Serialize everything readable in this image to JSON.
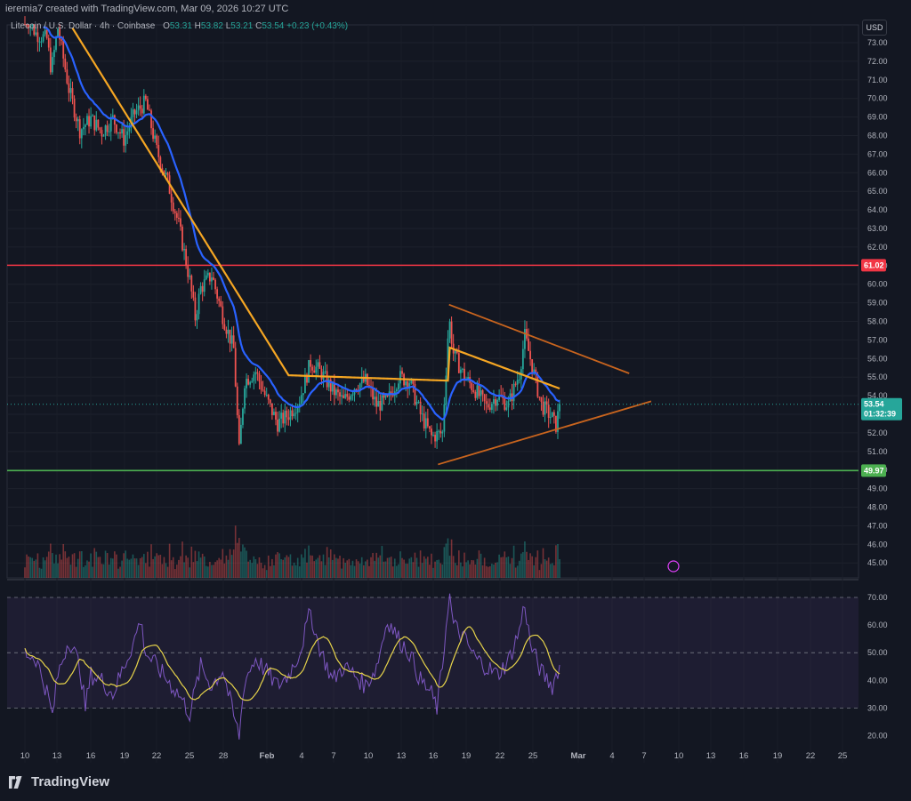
{
  "header": {
    "attribution": "ieremia7 created with TradingView.com, Mar 09, 2026 10:27 UTC"
  },
  "legend": {
    "symbol": "Litecoin / U.S. Dollar · 4h · Coinbase",
    "o_label": "O",
    "o": "53.31",
    "h_label": "H",
    "h": "53.82",
    "l_label": "L",
    "l": "53.21",
    "c_label": "C",
    "c": "53.54",
    "change": "+0.23 (+0.43%)"
  },
  "currency": "USD",
  "brand": "TradingView",
  "colors": {
    "background": "#131722",
    "up": "#26a69a",
    "down": "#ef5350",
    "ema_fast": "#2962ff",
    "ema_slow": "#f5a623",
    "resistance": "#f23645",
    "support": "#4caf50",
    "triangle": "#c8641e",
    "rsi": "#7e57c2",
    "rsi_ma": "#e6d34a"
  },
  "chart_data": [
    {
      "type": "candlestick",
      "title": "Litecoin / U.S. Dollar, 4h, Coinbase",
      "price_axis": {
        "range": [
          44.5,
          74.0
        ],
        "ticks": [
          "73.00",
          "72.00",
          "71.00",
          "70.00",
          "69.00",
          "68.00",
          "67.00",
          "66.00",
          "65.00",
          "64.00",
          "63.00",
          "62.00",
          "61.00",
          "60.00",
          "59.00",
          "58.00",
          "57.00",
          "56.00",
          "55.00",
          "54.00",
          "53.00",
          "52.00",
          "51.00",
          "50.00",
          "49.00",
          "48.00",
          "47.00",
          "46.00",
          "45.00"
        ]
      },
      "time_axis": {
        "ticks": [
          "10",
          "13",
          "16",
          "19",
          "22",
          "25",
          "28",
          "Feb",
          "4",
          "7",
          "10",
          "13",
          "16",
          "19",
          "22",
          "25",
          "Mar",
          "4",
          "7",
          "10",
          "13",
          "16",
          "19",
          "22",
          "25"
        ],
        "bold_ticks": [
          "Feb",
          "Mar"
        ]
      },
      "anchors": [
        {
          "d": 0,
          "p": 74.5
        },
        {
          "d": 1,
          "p": 73.5
        },
        {
          "d": 2,
          "p": 73.2
        },
        {
          "d": 2.4,
          "p": 71.5
        },
        {
          "d": 3,
          "p": 73.8
        },
        {
          "d": 4,
          "p": 70.5
        },
        {
          "d": 5,
          "p": 68.3
        },
        {
          "d": 6,
          "p": 68.9
        },
        {
          "d": 7,
          "p": 68.2
        },
        {
          "d": 8,
          "p": 68.9
        },
        {
          "d": 9,
          "p": 67.8
        },
        {
          "d": 10,
          "p": 69.2
        },
        {
          "d": 11,
          "p": 69.8
        },
        {
          "d": 12,
          "p": 67.2
        },
        {
          "d": 13,
          "p": 65.5
        },
        {
          "d": 14,
          "p": 63.2
        },
        {
          "d": 15,
          "p": 60.2
        },
        {
          "d": 15.5,
          "p": 58.2
        },
        {
          "d": 16,
          "p": 59.8
        },
        {
          "d": 17,
          "p": 60.5
        },
        {
          "d": 18,
          "p": 58.3
        },
        {
          "d": 19,
          "p": 56.5
        },
        {
          "d": 19.5,
          "p": 51.0
        },
        {
          "d": 20,
          "p": 54.8
        },
        {
          "d": 21,
          "p": 55.3
        },
        {
          "d": 22,
          "p": 53.8
        },
        {
          "d": 23,
          "p": 52.5
        },
        {
          "d": 24,
          "p": 53.0
        },
        {
          "d": 25,
          "p": 53.8
        },
        {
          "d": 26,
          "p": 55.8
        },
        {
          "d": 27,
          "p": 55.2
        },
        {
          "d": 28,
          "p": 54.3
        },
        {
          "d": 29,
          "p": 53.7
        },
        {
          "d": 30,
          "p": 54.5
        },
        {
          "d": 31,
          "p": 54.8
        },
        {
          "d": 32,
          "p": 53.5
        },
        {
          "d": 33,
          "p": 53.7
        },
        {
          "d": 34,
          "p": 55.0
        },
        {
          "d": 35,
          "p": 54.8
        },
        {
          "d": 36,
          "p": 53.0
        },
        {
          "d": 37,
          "p": 51.8
        },
        {
          "d": 38,
          "p": 52.0
        },
        {
          "d": 38.6,
          "p": 58.2
        },
        {
          "d": 39,
          "p": 56.3
        },
        {
          "d": 40,
          "p": 55.0
        },
        {
          "d": 41,
          "p": 54.3
        },
        {
          "d": 42,
          "p": 53.4
        },
        {
          "d": 43,
          "p": 54.0
        },
        {
          "d": 44,
          "p": 53.5
        },
        {
          "d": 45,
          "p": 55.2
        },
        {
          "d": 45.5,
          "p": 57.2
        },
        {
          "d": 46,
          "p": 56.0
        },
        {
          "d": 47,
          "p": 53.5
        },
        {
          "d": 48,
          "p": 52.8
        },
        {
          "d": 48.3,
          "p": 52.3
        },
        {
          "d": 48.7,
          "p": 53.54
        }
      ],
      "volume_note": "volume histogram at the bottom of the price pane",
      "series": [
        {
          "name": "EMA (fast)",
          "color": "#2962ff"
        },
        {
          "name": "EMA (slow)",
          "color": "#f5a623"
        }
      ],
      "horizontal_levels": [
        {
          "price": 61.02,
          "label": "61.02",
          "color": "#f23645"
        },
        {
          "price": 49.97,
          "label": "49.97",
          "color": "#4caf50"
        }
      ],
      "triangle_lines": [
        {
          "from": {
            "d": 38.6,
            "p": 58.9
          },
          "to": {
            "d": 55,
            "p": 55.2
          }
        },
        {
          "from": {
            "d": 37.6,
            "p": 50.3
          },
          "to": {
            "d": 57,
            "p": 53.7
          }
        }
      ],
      "last_price": {
        "value": "53.54",
        "countdown": "01:32:39",
        "color": "#26a69a"
      }
    },
    {
      "type": "line",
      "title": "",
      "y_axis": {
        "range": [
          17,
          76
        ],
        "ticks": [
          "70.00",
          "60.00",
          "50.00",
          "40.00",
          "30.00",
          "20.00"
        ]
      },
      "bands": {
        "upper": 70,
        "lower": 30
      },
      "series": [
        {
          "name": "RSI",
          "color": "#7e57c2",
          "anchors": [
            {
              "d": 0,
              "v": 50
            },
            {
              "d": 1,
              "v": 48
            },
            {
              "d": 2,
              "v": 36
            },
            {
              "d": 2.5,
              "v": 27
            },
            {
              "d": 3,
              "v": 42
            },
            {
              "d": 4,
              "v": 55
            },
            {
              "d": 5,
              "v": 45
            },
            {
              "d": 5.5,
              "v": 30
            },
            {
              "d": 6,
              "v": 42
            },
            {
              "d": 7,
              "v": 40
            },
            {
              "d": 8,
              "v": 35
            },
            {
              "d": 9,
              "v": 45
            },
            {
              "d": 10,
              "v": 55
            },
            {
              "d": 10.5,
              "v": 62
            },
            {
              "d": 11,
              "v": 50
            },
            {
              "d": 12,
              "v": 45
            },
            {
              "d": 13,
              "v": 40
            },
            {
              "d": 14,
              "v": 35
            },
            {
              "d": 15,
              "v": 28
            },
            {
              "d": 16,
              "v": 45
            },
            {
              "d": 17,
              "v": 38
            },
            {
              "d": 18,
              "v": 44
            },
            {
              "d": 19,
              "v": 27
            },
            {
              "d": 19.5,
              "v": 20
            },
            {
              "d": 20,
              "v": 40
            },
            {
              "d": 21,
              "v": 48
            },
            {
              "d": 22,
              "v": 43
            },
            {
              "d": 23,
              "v": 38
            },
            {
              "d": 24,
              "v": 42
            },
            {
              "d": 25,
              "v": 50
            },
            {
              "d": 26,
              "v": 65
            },
            {
              "d": 26.5,
              "v": 56
            },
            {
              "d": 27,
              "v": 50
            },
            {
              "d": 28,
              "v": 40
            },
            {
              "d": 29,
              "v": 45
            },
            {
              "d": 30,
              "v": 42
            },
            {
              "d": 31,
              "v": 38
            },
            {
              "d": 32,
              "v": 45
            },
            {
              "d": 33,
              "v": 62
            },
            {
              "d": 34,
              "v": 55
            },
            {
              "d": 35,
              "v": 50
            },
            {
              "d": 36,
              "v": 40
            },
            {
              "d": 37,
              "v": 35
            },
            {
              "d": 37.5,
              "v": 30
            },
            {
              "d": 38,
              "v": 45
            },
            {
              "d": 38.6,
              "v": 72
            },
            {
              "d": 39,
              "v": 60
            },
            {
              "d": 40,
              "v": 55
            },
            {
              "d": 41,
              "v": 48
            },
            {
              "d": 42,
              "v": 45
            },
            {
              "d": 43,
              "v": 42
            },
            {
              "d": 44,
              "v": 47
            },
            {
              "d": 45,
              "v": 58
            },
            {
              "d": 45.5,
              "v": 68
            },
            {
              "d": 46,
              "v": 53
            },
            {
              "d": 47,
              "v": 43
            },
            {
              "d": 48,
              "v": 38
            },
            {
              "d": 48.7,
              "v": 46
            }
          ]
        },
        {
          "name": "RSI-based MA",
          "color": "#e6d34a"
        }
      ]
    }
  ]
}
